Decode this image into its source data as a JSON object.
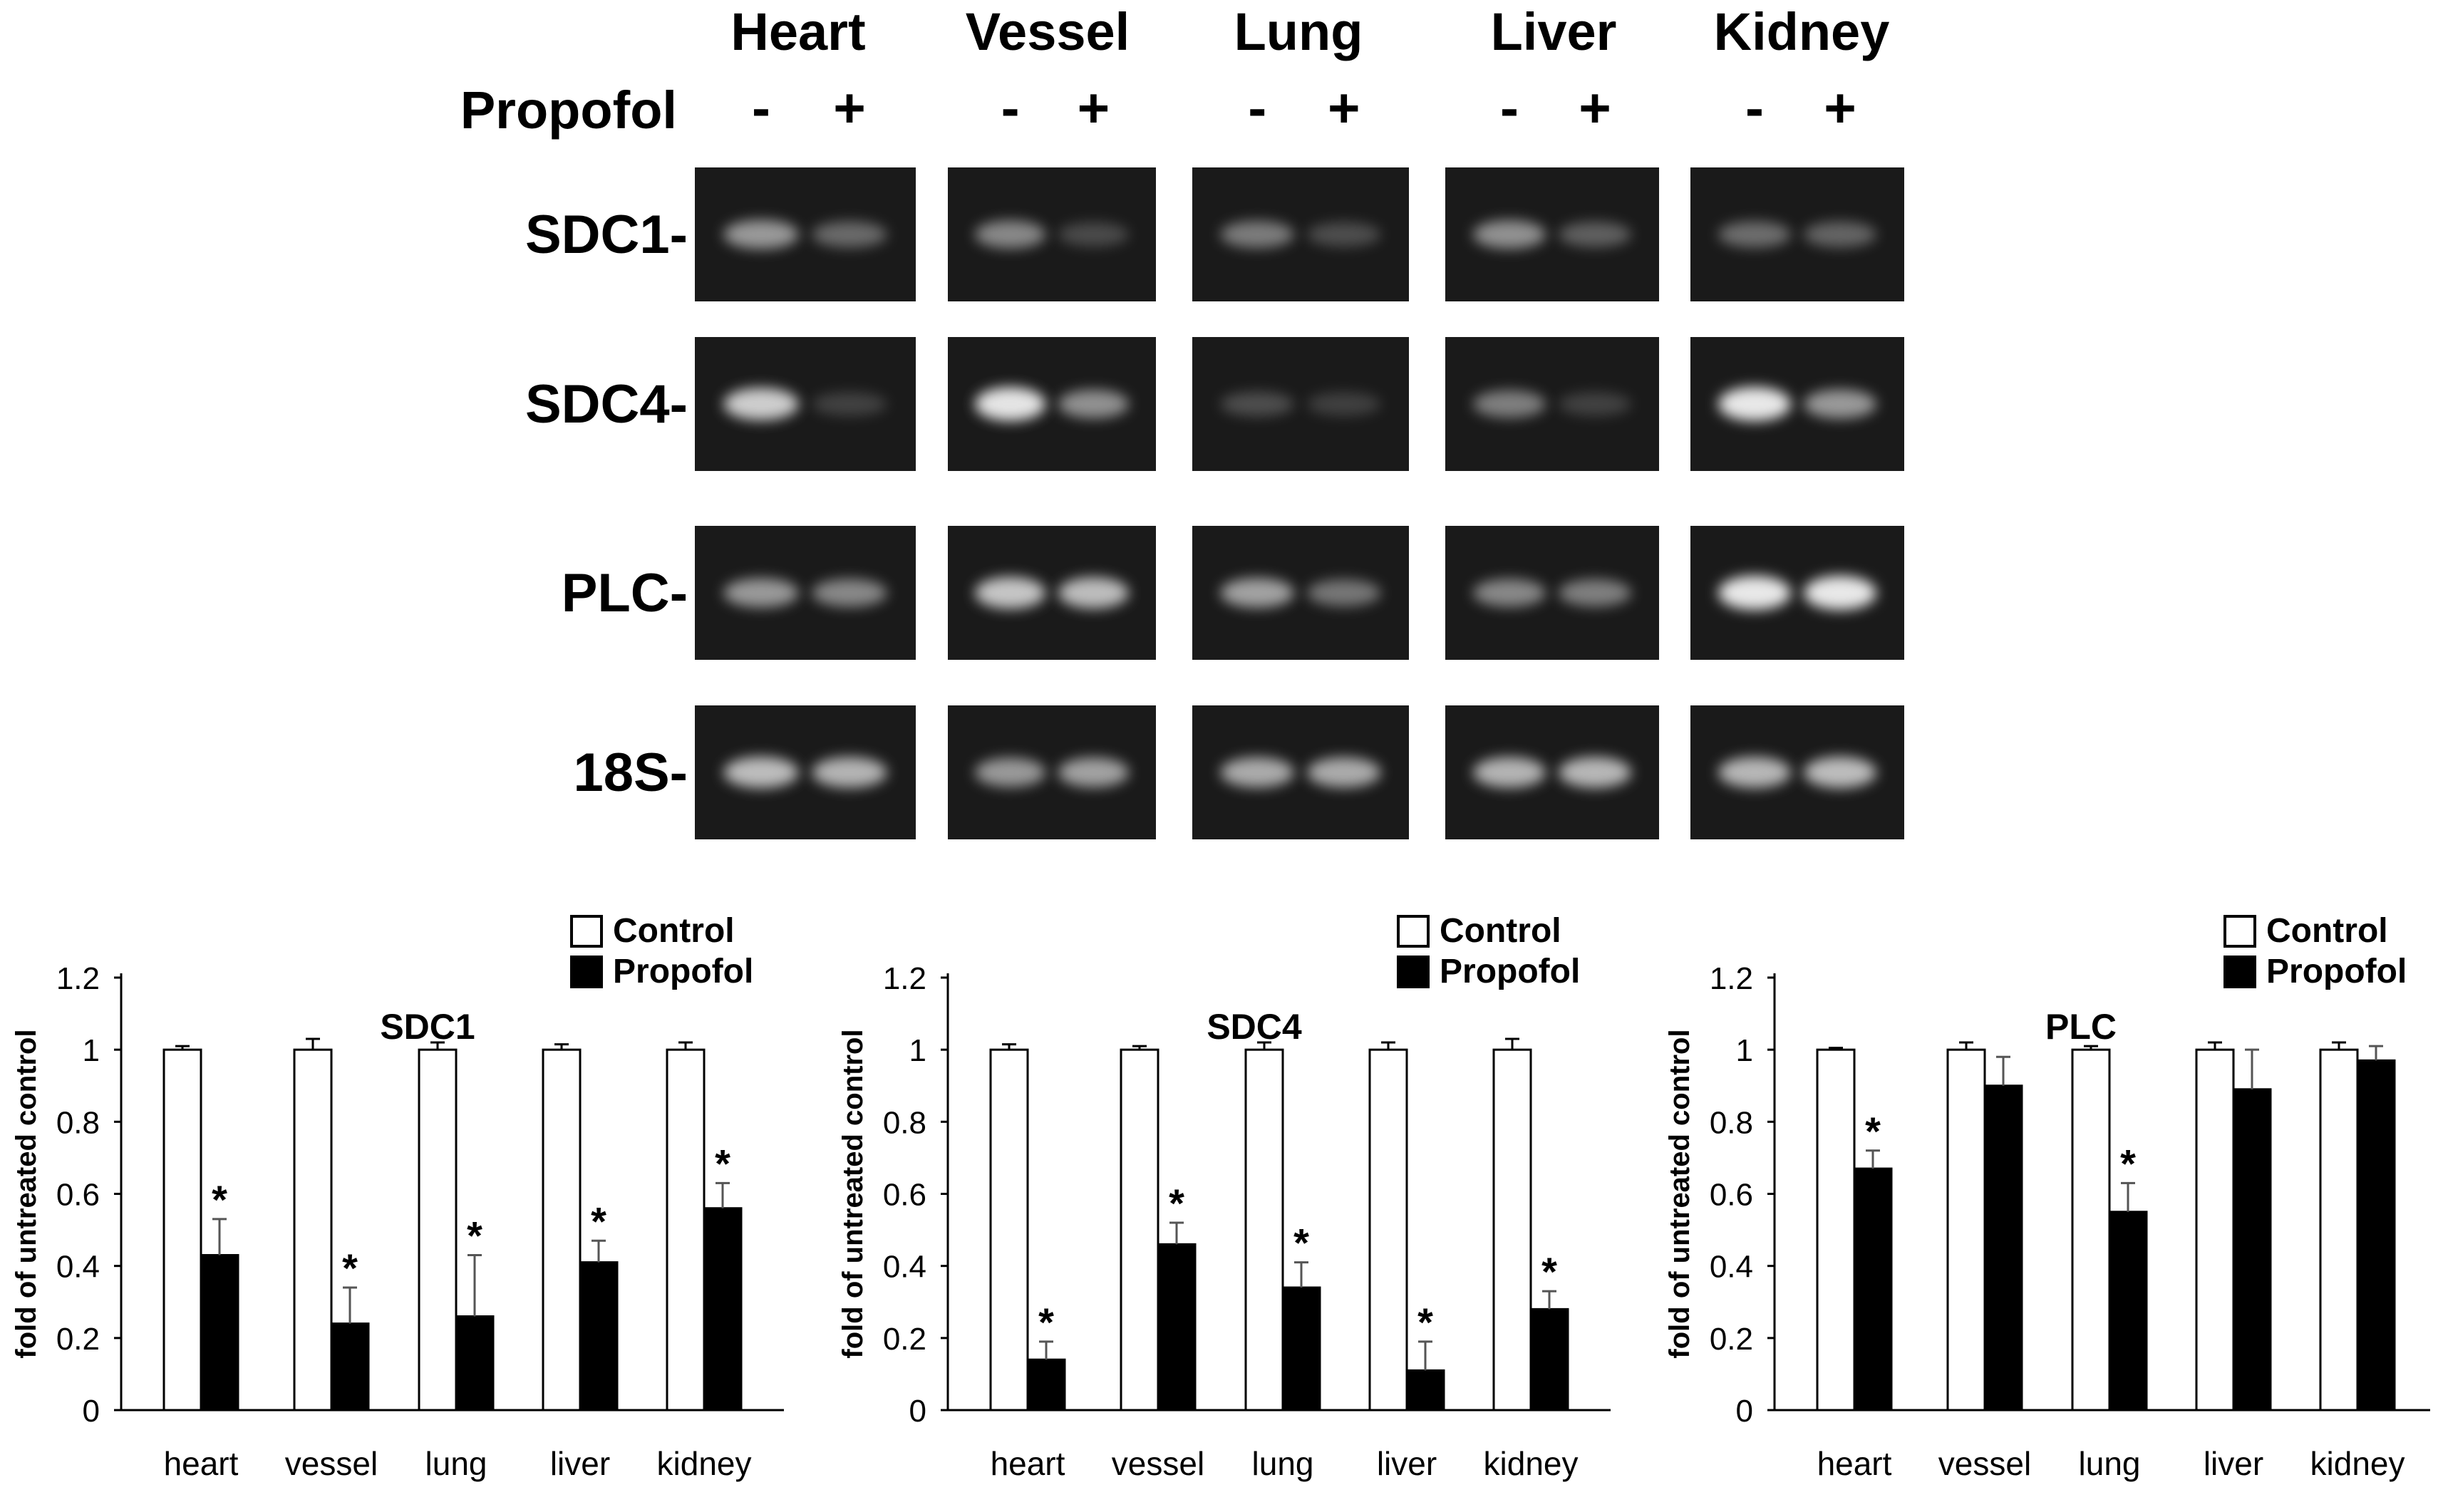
{
  "blot": {
    "tissues": [
      "Heart",
      "Vessel",
      "Lung",
      "Liver",
      "Kidney"
    ],
    "treatment_label": "Propofol",
    "lane_signs": [
      "-",
      "+"
    ],
    "genes": [
      "SDC1-",
      "SDC4-",
      "PLC-",
      "18S-"
    ],
    "bands": {
      "description_levels_0_to_1": true,
      "SDC1": [
        [
          0.55,
          0.28
        ],
        [
          0.45,
          0.1
        ],
        [
          0.38,
          0.12
        ],
        [
          0.5,
          0.22
        ],
        [
          0.3,
          0.25
        ]
      ],
      "SDC4": [
        [
          0.85,
          0.05
        ],
        [
          0.98,
          0.5
        ],
        [
          0.12,
          0.04
        ],
        [
          0.4,
          0.05
        ],
        [
          1.0,
          0.55
        ]
      ],
      "PLC": [
        [
          0.55,
          0.45
        ],
        [
          0.8,
          0.75
        ],
        [
          0.6,
          0.35
        ],
        [
          0.45,
          0.4
        ],
        [
          1.0,
          1.0
        ]
      ],
      "18S": [
        [
          0.75,
          0.7
        ],
        [
          0.55,
          0.6
        ],
        [
          0.65,
          0.65
        ],
        [
          0.7,
          0.72
        ],
        [
          0.72,
          0.75
        ]
      ]
    }
  },
  "legend": {
    "control": "Control",
    "propofol": "Propofol"
  },
  "colors": {
    "control": "#ffffff",
    "propofol": "#000000",
    "gel_bg": "#1a1a1a",
    "band": "#e8e8e8"
  },
  "chart_data": [
    {
      "type": "bar",
      "title": "SDC1",
      "ylabel": "fold of untreated control",
      "xlabel": "",
      "categories": [
        "heart",
        "vessel",
        "lung",
        "liver",
        "kidney"
      ],
      "ylim": [
        0,
        1.2
      ],
      "yticks": [
        "0",
        "0.2",
        "0.4",
        "0.6",
        "0.8",
        "1",
        "1.2"
      ],
      "series": [
        {
          "name": "Control",
          "values": [
            1,
            1,
            1,
            1,
            1
          ],
          "errors": [
            0.01,
            0.03,
            0.02,
            0.015,
            0.02
          ]
        },
        {
          "name": "Propofol",
          "values": [
            0.43,
            0.24,
            0.26,
            0.41,
            0.56
          ],
          "errors": [
            0.1,
            0.1,
            0.17,
            0.06,
            0.07
          ]
        }
      ],
      "significance": [
        true,
        true,
        true,
        true,
        true
      ],
      "legend_position": "top-right"
    },
    {
      "type": "bar",
      "title": "SDC4",
      "ylabel": "fold of untreated control",
      "xlabel": "",
      "categories": [
        "heart",
        "vessel",
        "lung",
        "liver",
        "kidney"
      ],
      "ylim": [
        0,
        1.2
      ],
      "yticks": [
        "0",
        "0.2",
        "0.4",
        "0.6",
        "0.8",
        "1",
        "1.2"
      ],
      "series": [
        {
          "name": "Control",
          "values": [
            1,
            1,
            1,
            1,
            1
          ],
          "errors": [
            0.015,
            0.01,
            0.02,
            0.02,
            0.03
          ]
        },
        {
          "name": "Propofol",
          "values": [
            0.14,
            0.46,
            0.34,
            0.11,
            0.28
          ],
          "errors": [
            0.05,
            0.06,
            0.07,
            0.08,
            0.05
          ]
        }
      ],
      "significance": [
        true,
        true,
        true,
        true,
        true
      ],
      "legend_position": "top-right"
    },
    {
      "type": "bar",
      "title": "PLC",
      "ylabel": "fold of untreated control",
      "xlabel": "",
      "categories": [
        "heart",
        "vessel",
        "lung",
        "liver",
        "kidney"
      ],
      "ylim": [
        0,
        1.2
      ],
      "yticks": [
        "0",
        "0.2",
        "0.4",
        "0.6",
        "0.8",
        "1",
        "1.2"
      ],
      "series": [
        {
          "name": "Control",
          "values": [
            1,
            1,
            1,
            1,
            1
          ],
          "errors": [
            0.005,
            0.02,
            0.01,
            0.02,
            0.02
          ]
        },
        {
          "name": "Propofol",
          "values": [
            0.67,
            0.9,
            0.55,
            0.89,
            0.97
          ],
          "errors": [
            0.05,
            0.08,
            0.08,
            0.11,
            0.04
          ]
        }
      ],
      "significance": [
        true,
        false,
        true,
        false,
        false
      ],
      "significance_mark": "*",
      "legend_position": "top-right"
    }
  ]
}
